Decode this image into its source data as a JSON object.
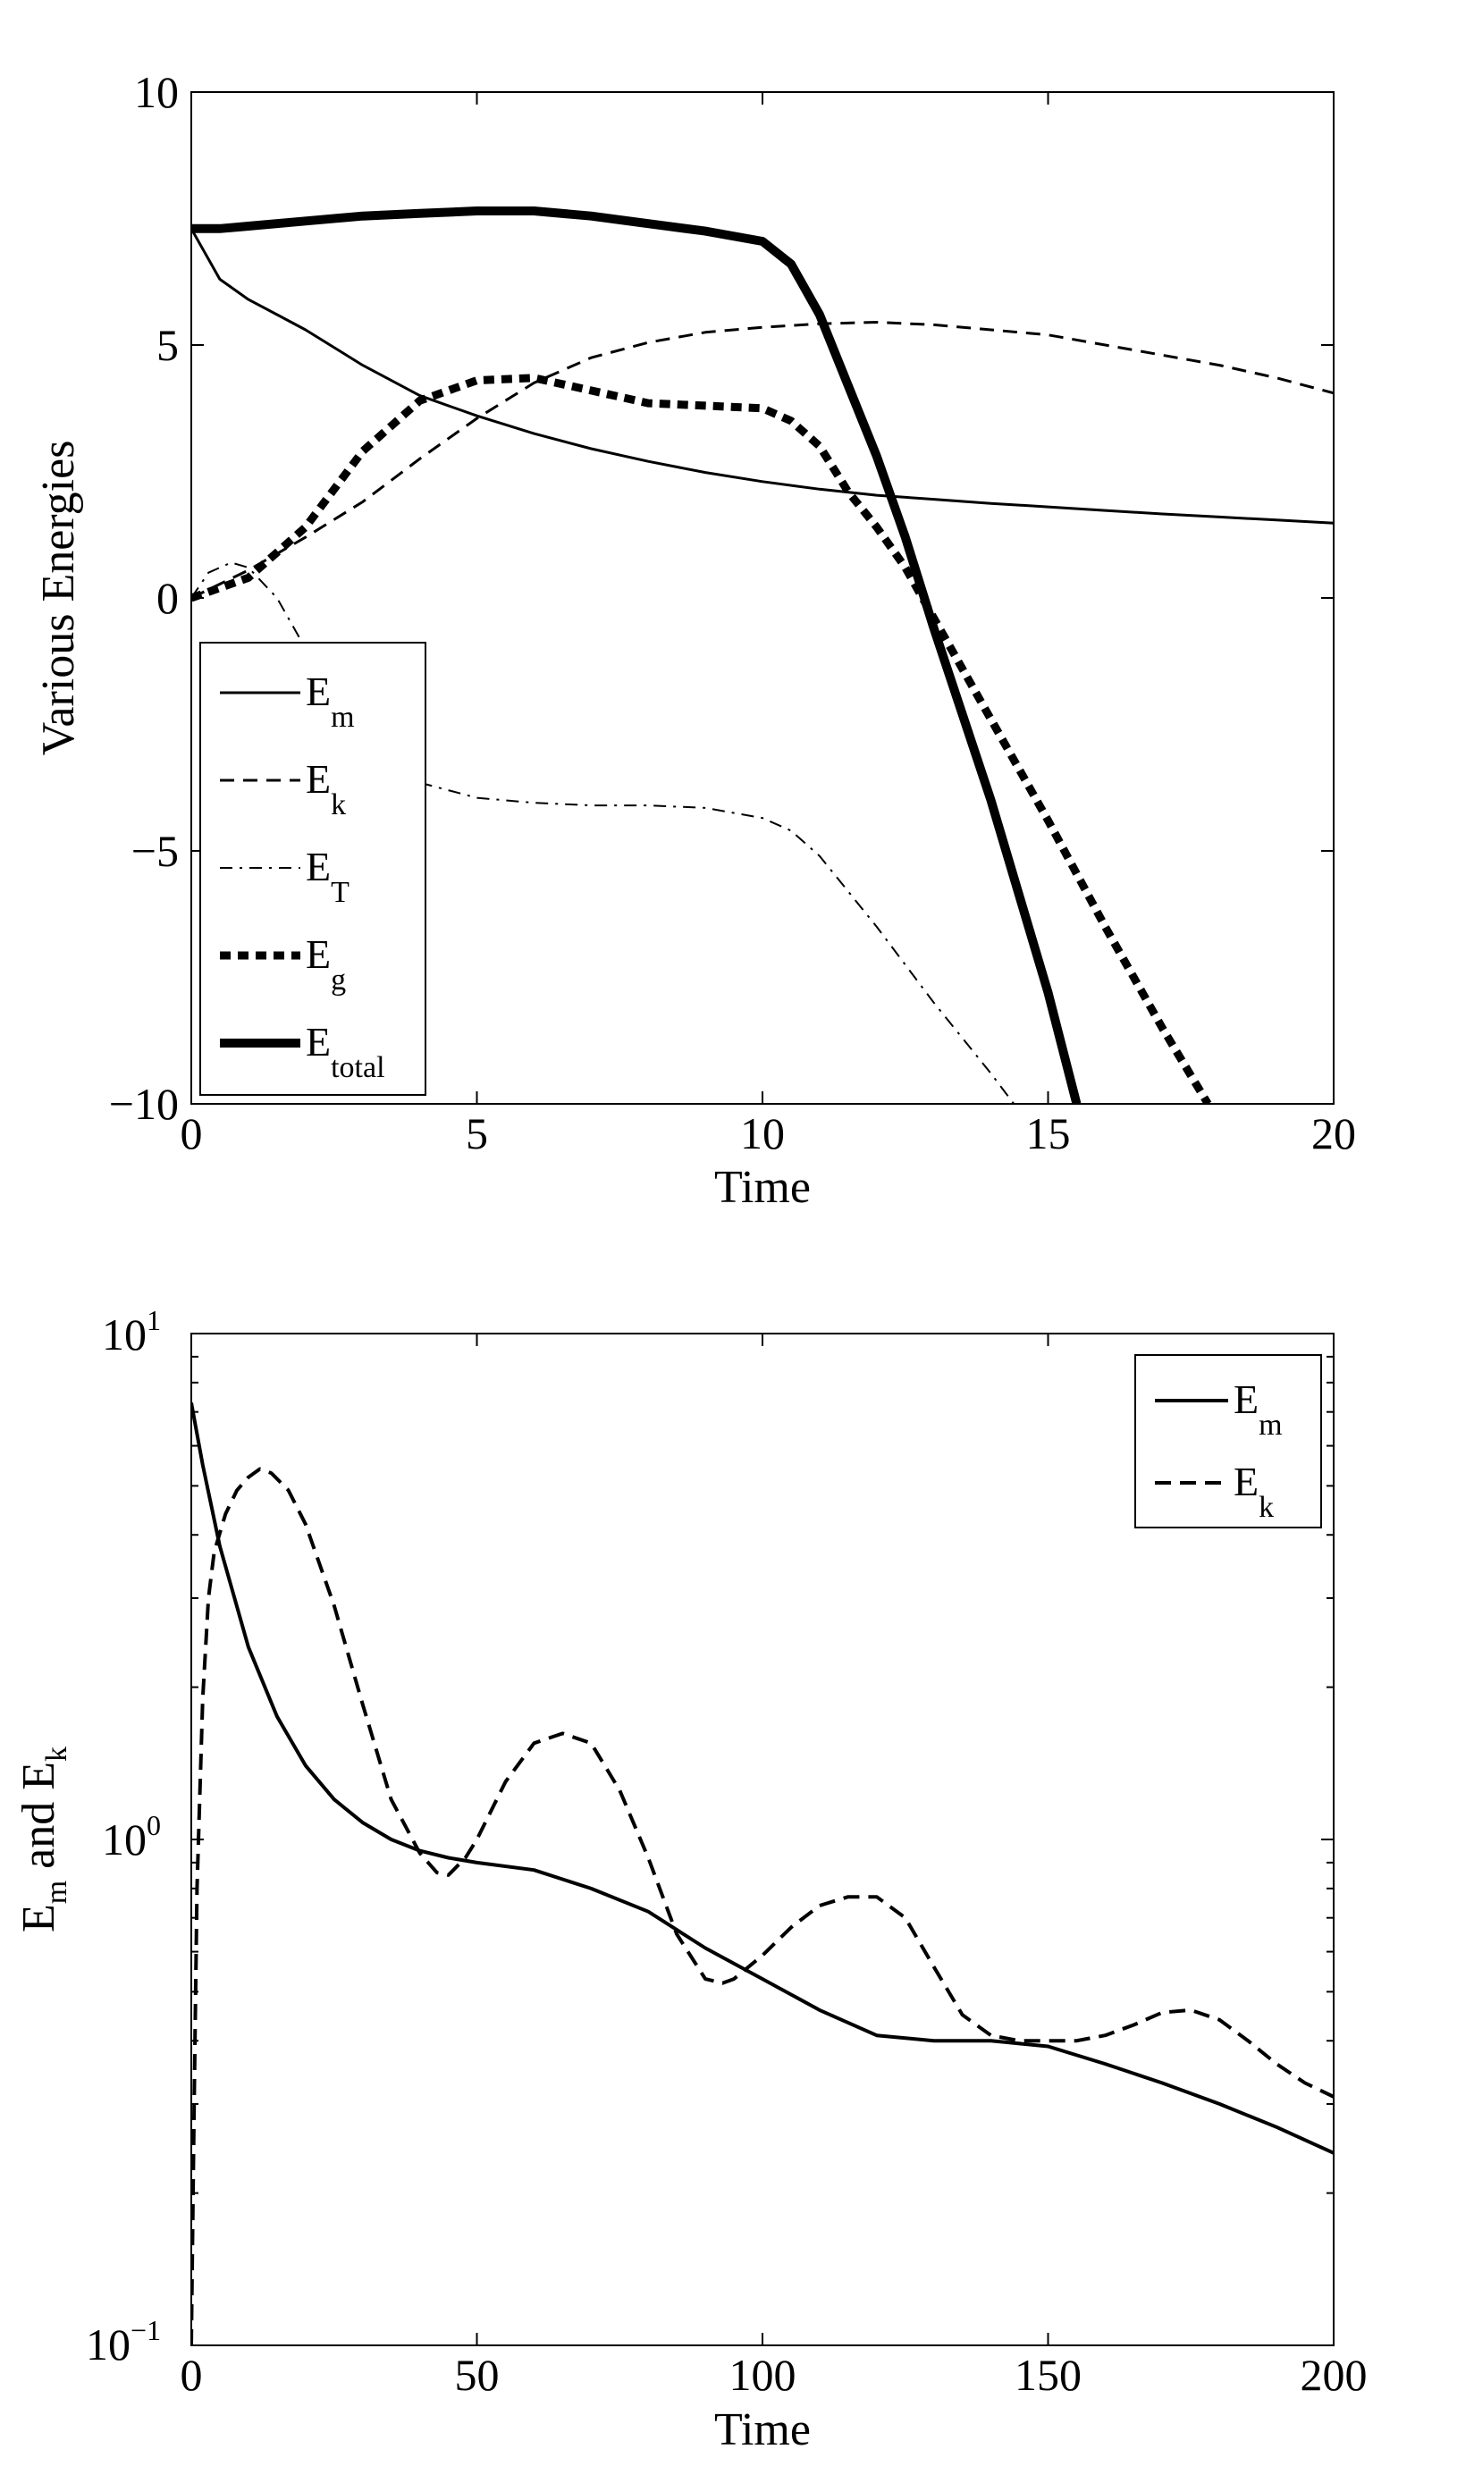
{
  "chart_data": [
    {
      "type": "line",
      "xlabel": "Time",
      "ylabel": "Various Energies",
      "xlim": [
        0,
        20
      ],
      "ylim": [
        -10,
        10
      ],
      "xticks": [
        0,
        5,
        10,
        15,
        20
      ],
      "yticks": [
        -10,
        -5,
        0,
        5,
        10
      ],
      "xtick_labels": [
        "0",
        "5",
        "10",
        "15",
        "20"
      ],
      "ytick_labels": [
        "−10",
        "−5",
        "0",
        "5",
        "10"
      ],
      "legend_position": "bottom-left",
      "series": [
        {
          "name": "E_m",
          "label_base": "E",
          "label_sub": "m",
          "style": "solid",
          "weight": "thin",
          "x": [
            0,
            0.5,
            1,
            1.5,
            2,
            3,
            4,
            5,
            6,
            7,
            8,
            9,
            10,
            11,
            12,
            13,
            14,
            15,
            16,
            17,
            18,
            19,
            20
          ],
          "y": [
            7.3,
            6.3,
            5.9,
            5.6,
            5.3,
            4.6,
            4.0,
            3.6,
            3.25,
            2.95,
            2.7,
            2.48,
            2.3,
            2.15,
            2.03,
            1.95,
            1.87,
            1.8,
            1.73,
            1.66,
            1.6,
            1.54,
            1.48
          ]
        },
        {
          "name": "E_k",
          "label_base": "E",
          "label_sub": "k",
          "style": "dashed",
          "weight": "thin",
          "x": [
            0,
            1,
            2,
            3,
            4,
            5,
            6,
            7,
            8,
            9,
            10,
            11,
            12,
            13,
            14,
            15,
            16,
            17,
            18,
            19,
            20
          ],
          "y": [
            0,
            0.55,
            1.2,
            1.9,
            2.75,
            3.55,
            4.25,
            4.75,
            5.05,
            5.25,
            5.35,
            5.42,
            5.45,
            5.4,
            5.3,
            5.2,
            5.0,
            4.8,
            4.6,
            4.35,
            4.05
          ]
        },
        {
          "name": "E_T",
          "label_base": "E",
          "label_sub": "T",
          "style": "dashdot",
          "weight": "thin",
          "x": [
            0,
            0.3,
            0.7,
            1.0,
            1.5,
            2,
            2.5,
            3,
            3.5,
            4,
            5,
            6,
            7,
            8,
            9,
            10,
            10.5,
            11,
            12,
            13,
            14,
            14.4
          ],
          "y": [
            0,
            0.5,
            0.7,
            0.6,
            0.0,
            -1.0,
            -2.1,
            -2.9,
            -3.3,
            -3.65,
            -3.95,
            -4.05,
            -4.1,
            -4.1,
            -4.15,
            -4.35,
            -4.6,
            -5.1,
            -6.5,
            -8.0,
            -9.4,
            -10.0
          ]
        },
        {
          "name": "E_g",
          "label_base": "E",
          "label_sub": "g",
          "style": "dotted",
          "weight": "thick",
          "x": [
            0,
            1,
            2,
            3,
            4,
            5,
            6,
            7,
            8,
            9,
            10,
            10.5,
            11,
            11.5,
            12,
            12.5,
            13,
            14,
            15,
            16,
            17,
            17.8
          ],
          "y": [
            0,
            0.4,
            1.4,
            2.9,
            3.9,
            4.3,
            4.35,
            4.1,
            3.85,
            3.8,
            3.75,
            3.5,
            3.0,
            2.1,
            1.4,
            0.6,
            -0.4,
            -2.4,
            -4.4,
            -6.5,
            -8.5,
            -10.0
          ]
        },
        {
          "name": "E_total",
          "label_base": "E",
          "label_sub": "total",
          "style": "solid",
          "weight": "bold",
          "x": [
            0,
            0.5,
            1,
            2,
            3,
            4,
            5,
            6,
            7,
            8,
            9,
            10,
            10.5,
            11,
            11.5,
            12,
            12.5,
            13,
            14,
            15,
            15.5
          ],
          "y": [
            7.3,
            7.3,
            7.35,
            7.45,
            7.55,
            7.6,
            7.65,
            7.65,
            7.55,
            7.4,
            7.25,
            7.05,
            6.6,
            5.6,
            4.2,
            2.8,
            1.2,
            -0.6,
            -4.0,
            -7.8,
            -10.0
          ]
        }
      ]
    },
    {
      "type": "line",
      "yscale": "log",
      "xlabel": "Time",
      "ylabel": "E_m and E_k",
      "ylabel_parts": {
        "e1": "E",
        "s1": "m",
        "mid": " and ",
        "e2": "E",
        "s2": "k"
      },
      "xlim": [
        0,
        200
      ],
      "ylim": [
        0.1,
        10
      ],
      "xticks": [
        0,
        50,
        100,
        150,
        200
      ],
      "xtick_labels": [
        "0",
        "50",
        "100",
        "150",
        "200"
      ],
      "ytick_labels": [
        {
          "base": "10",
          "exp": "−1"
        },
        {
          "base": "10",
          "exp": "0"
        },
        {
          "base": "10",
          "exp": "1"
        }
      ],
      "legend_position": "top-right",
      "series": [
        {
          "name": "E_m",
          "label_base": "E",
          "label_sub": "m",
          "style": "solid",
          "x": [
            0,
            2,
            5,
            10,
            15,
            20,
            25,
            30,
            35,
            40,
            45,
            50,
            60,
            70,
            80,
            90,
            100,
            110,
            120,
            130,
            140,
            150,
            160,
            170,
            180,
            190,
            200
          ],
          "y": [
            7.3,
            5.5,
            3.8,
            2.4,
            1.75,
            1.4,
            1.2,
            1.08,
            1.0,
            0.95,
            0.92,
            0.9,
            0.87,
            0.8,
            0.72,
            0.61,
            0.53,
            0.46,
            0.41,
            0.4,
            0.4,
            0.39,
            0.36,
            0.33,
            0.3,
            0.27,
            0.24
          ]
        },
        {
          "name": "E_k",
          "label_base": "E",
          "label_sub": "k",
          "style": "dashed",
          "x": [
            0,
            0.5,
            1,
            2,
            3,
            4,
            6,
            8,
            10,
            12,
            14,
            17,
            20,
            25,
            30,
            35,
            40,
            43,
            45,
            48,
            50,
            55,
            60,
            65,
            70,
            75,
            80,
            85,
            90,
            93,
            95,
            100,
            105,
            110,
            115,
            120,
            125,
            130,
            135,
            140,
            145,
            150,
            155,
            160,
            165,
            170,
            175,
            180,
            185,
            190,
            195,
            200
          ],
          "y": [
            0.1,
            0.3,
            0.8,
            1.9,
            3.0,
            3.7,
            4.4,
            4.9,
            5.2,
            5.4,
            5.3,
            4.9,
            4.2,
            2.9,
            1.85,
            1.2,
            0.94,
            0.86,
            0.85,
            0.92,
            1.0,
            1.3,
            1.55,
            1.62,
            1.55,
            1.25,
            0.92,
            0.65,
            0.53,
            0.52,
            0.53,
            0.59,
            0.67,
            0.74,
            0.77,
            0.77,
            0.7,
            0.56,
            0.45,
            0.41,
            0.4,
            0.4,
            0.4,
            0.41,
            0.43,
            0.455,
            0.46,
            0.44,
            0.4,
            0.36,
            0.33,
            0.31
          ]
        }
      ]
    }
  ]
}
